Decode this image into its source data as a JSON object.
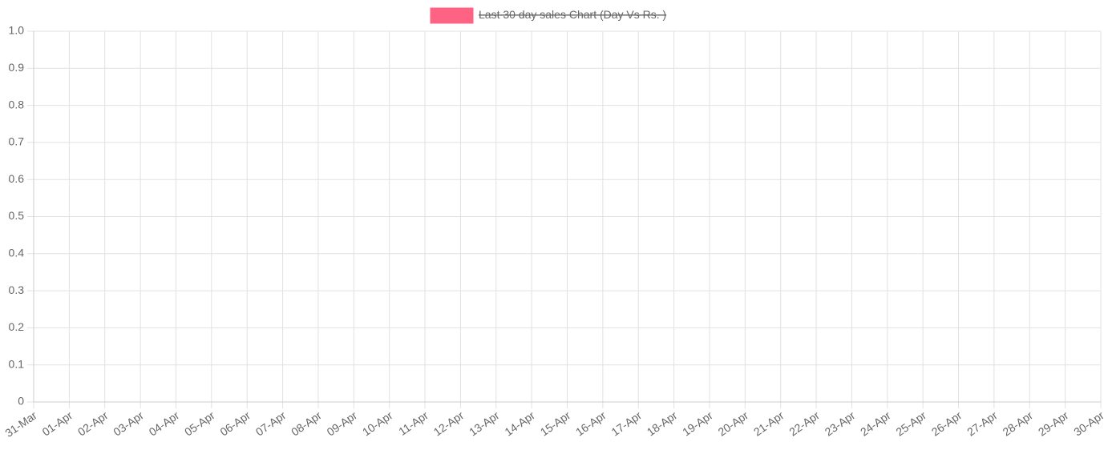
{
  "chart_data": {
    "type": "line",
    "categories": [
      "31-Mar",
      "01-Apr",
      "02-Apr",
      "03-Apr",
      "04-Apr",
      "05-Apr",
      "06-Apr",
      "07-Apr",
      "08-Apr",
      "09-Apr",
      "10-Apr",
      "11-Apr",
      "12-Apr",
      "13-Apr",
      "14-Apr",
      "15-Apr",
      "16-Apr",
      "17-Apr",
      "18-Apr",
      "19-Apr",
      "20-Apr",
      "21-Apr",
      "22-Apr",
      "23-Apr",
      "24-Apr",
      "25-Apr",
      "26-Apr",
      "27-Apr",
      "28-Apr",
      "29-Apr",
      "30-Apr"
    ],
    "series": [
      {
        "name": "Last 30 day sales Chart (Day Vs Rs. )",
        "color": "#ff6384",
        "hidden": true
      }
    ],
    "ylim": [
      0,
      1
    ],
    "yticks": [
      0,
      0.1,
      0.2,
      0.3,
      0.4,
      0.5,
      0.6,
      0.7,
      0.8,
      0.9,
      {
        "value": 1,
        "label": "1.0"
      }
    ],
    "grid": true,
    "legend": "top"
  }
}
